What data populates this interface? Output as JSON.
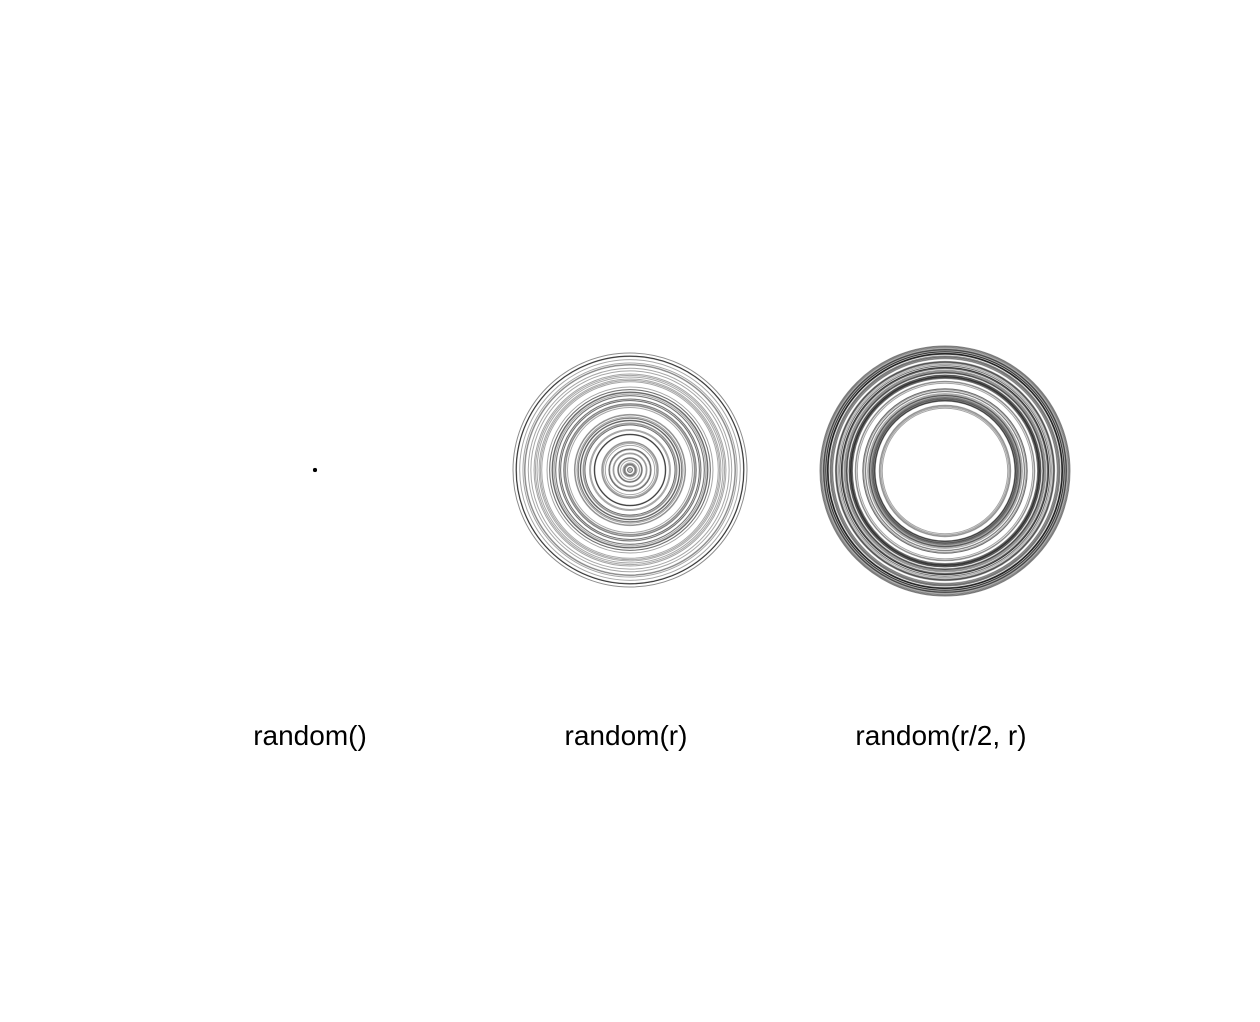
{
  "panels": [
    {
      "label": "random()"
    },
    {
      "label": "random(r)"
    },
    {
      "label": "random(r/2, r)"
    }
  ],
  "colors": {
    "background": "#ffffff",
    "stroke": "#000000",
    "text": "#000000"
  }
}
